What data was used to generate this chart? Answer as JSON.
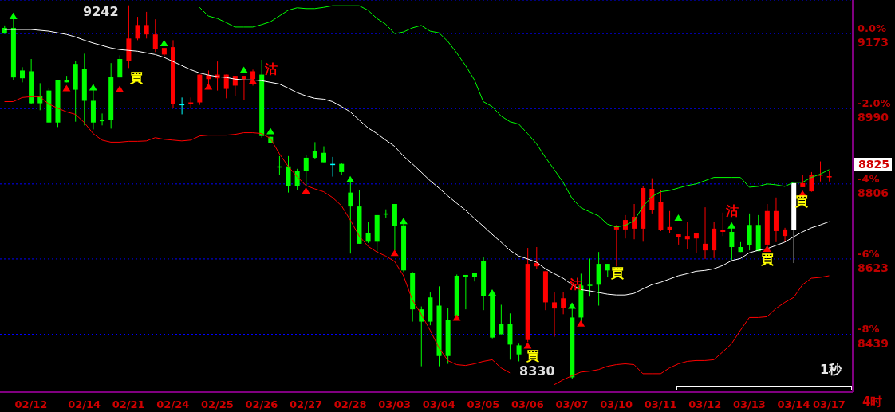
{
  "chart_data": {
    "type": "candlestick",
    "categories": [
      null,
      null,
      null,
      "02/12",
      null,
      null,
      null,
      null,
      null,
      "02/14",
      null,
      null,
      null,
      null,
      "02/21",
      null,
      null,
      null,
      null,
      "02/24",
      null,
      null,
      null,
      null,
      "02/25",
      null,
      null,
      null,
      null,
      "02/26",
      null,
      null,
      null,
      null,
      "02/27",
      null,
      null,
      null,
      null,
      "02/28",
      null,
      null,
      null,
      null,
      "03/03",
      null,
      null,
      null,
      null,
      "03/04",
      null,
      null,
      null,
      null,
      "03/05",
      null,
      null,
      null,
      null,
      "03/06",
      null,
      null,
      null,
      null,
      "03/07",
      null,
      null,
      null,
      null,
      "03/10",
      null,
      null,
      null,
      null,
      "03/11",
      null,
      null,
      null,
      null,
      "03/12",
      null,
      null,
      null,
      null,
      "03/13",
      null,
      null,
      null,
      null,
      "03/14",
      null,
      null,
      null,
      "03/17"
    ],
    "ohlc": [
      [
        9187,
        9193,
        9173,
        9173
      ],
      [
        9187,
        9224,
        9060,
        9066
      ],
      [
        9083,
        9091,
        9054,
        9064
      ],
      [
        9081,
        9111,
        9001,
        9003
      ],
      [
        9021,
        9052,
        8986,
        9003
      ],
      [
        9034,
        9040,
        8956,
        8956
      ],
      [
        9060,
        9060,
        8945,
        8956
      ],
      [
        9060,
        9070,
        9054,
        9054
      ],
      [
        9099,
        9107,
        8958,
        9036
      ],
      [
        9087,
        9124,
        8949,
        9009
      ],
      [
        9009,
        9050,
        8939,
        8956
      ],
      [
        8962,
        8978,
        8949,
        8962
      ],
      [
        9068,
        9101,
        8941,
        8962
      ],
      [
        9111,
        9120,
        9066,
        9066
      ],
      [
        9107,
        9242,
        9089,
        9161
      ],
      [
        9161,
        9214,
        9157,
        9194
      ],
      [
        9171,
        9226,
        9161,
        9194
      ],
      [
        9136,
        9208,
        9128,
        9171
      ],
      [
        9122,
        9138,
        9118,
        9138
      ],
      [
        9001,
        9157,
        8991,
        9140
      ],
      [
        9001,
        9017,
        8976,
        9001
      ],
      [
        9005,
        9017,
        8990,
        9005
      ],
      [
        9005,
        9073,
        8999,
        9073
      ],
      [
        9062,
        9083,
        9050,
        9072
      ],
      [
        9064,
        9105,
        9034,
        9073
      ],
      [
        9038,
        9073,
        9015,
        9073
      ],
      [
        9046,
        9070,
        9021,
        9070
      ],
      [
        9062,
        9070,
        9011,
        9070
      ],
      [
        9062,
        9085,
        9046,
        9081
      ],
      [
        9073,
        9109,
        8919,
        8923
      ],
      [
        8921,
        8921,
        8906,
        8906
      ],
      [
        8849,
        8874,
        8828,
        8849
      ],
      [
        8849,
        8874,
        8785,
        8800
      ],
      [
        8837,
        8843,
        8792,
        8800
      ],
      [
        8870,
        8876,
        8800,
        8837
      ],
      [
        8886,
        8908,
        8867,
        8870
      ],
      [
        8882,
        8898,
        8859,
        8859
      ],
      [
        8855,
        8872,
        8824,
        8855
      ],
      [
        8855,
        8857,
        8829,
        8835
      ],
      [
        8785,
        8812,
        8636,
        8751
      ],
      [
        8751,
        8792,
        8660,
        8660
      ],
      [
        8687,
        8714,
        8662,
        8665
      ],
      [
        8730,
        8730,
        8640,
        8665
      ],
      [
        8734,
        8744,
        8724,
        8734
      ],
      [
        8757,
        8757,
        8644,
        8703
      ],
      [
        8705,
        8722,
        8591,
        8595
      ],
      [
        8589,
        8591,
        8470,
        8500
      ],
      [
        8500,
        8507,
        8361,
        8470
      ],
      [
        8529,
        8541,
        8461,
        8470
      ],
      [
        8509,
        8556,
        8361,
        8386
      ],
      [
        8474,
        8503,
        8367,
        8386
      ],
      [
        8582,
        8585,
        8484,
        8484
      ],
      [
        8584,
        8584,
        8500,
        8580
      ],
      [
        8589,
        8589,
        8568,
        8580
      ],
      [
        8617,
        8628,
        8498,
        8533
      ],
      [
        8533,
        8546,
        8429,
        8431
      ],
      [
        8464,
        8511,
        8439,
        8439
      ],
      [
        8464,
        8490,
        8377,
        8414
      ],
      [
        8412,
        8416,
        8373,
        8390
      ],
      [
        8425,
        8650,
        8420,
        8611
      ],
      [
        8605,
        8652,
        8599,
        8613
      ],
      [
        8517,
        8593,
        8498,
        8593
      ],
      [
        8502,
        8541,
        8433,
        8517
      ],
      [
        8504,
        8543,
        8488,
        8527
      ],
      [
        8480,
        8515,
        8330,
        8334
      ],
      [
        8558,
        8587,
        8470,
        8480
      ],
      [
        8560,
        8624,
        8531,
        8560
      ],
      [
        8611,
        8640,
        8509,
        8560
      ],
      [
        8611,
        8611,
        8578,
        8595
      ],
      [
        8695,
        8706,
        8605,
        8703
      ],
      [
        8695,
        8730,
        8673,
        8718
      ],
      [
        8697,
        8757,
        8671,
        8726
      ],
      [
        8697,
        8800,
        8665,
        8796
      ],
      [
        8742,
        8820,
        8734,
        8794
      ],
      [
        8693,
        8792,
        8691,
        8761
      ],
      [
        8693,
        8740,
        8685,
        8701
      ],
      [
        8677,
        8683,
        8658,
        8683
      ],
      [
        8671,
        8714,
        8648,
        8679
      ],
      [
        8673,
        8685,
        8638,
        8685
      ],
      [
        8644,
        8749,
        8623,
        8660
      ],
      [
        8644,
        8714,
        8625,
        8697
      ],
      [
        8689,
        8736,
        8679,
        8693
      ],
      [
        8689,
        8705,
        8621,
        8652
      ],
      [
        8652,
        8664,
        8640,
        8640
      ],
      [
        8706,
        8734,
        8644,
        8656
      ],
      [
        8706,
        8730,
        8642,
        8642
      ],
      [
        8658,
        8757,
        8650,
        8740
      ],
      [
        8691,
        8773,
        8664,
        8740
      ],
      [
        8679,
        8699,
        8664,
        8695
      ],
      [
        8693,
        8808,
        8613,
        8808
      ],
      [
        8798,
        8828,
        8798,
        8808
      ],
      [
        8788,
        8835,
        8787,
        8828
      ],
      [
        8829,
        8861,
        8812,
        8829
      ],
      [
        8825,
        8839,
        8812,
        8825
      ]
    ],
    "colors": [
      "#00ff00",
      "#00ff00",
      "#00ff00",
      "#00ff00",
      "#00ff00",
      "#00ff00",
      "#00ff00",
      "#00ff00",
      "#00ff00",
      "#00ff00",
      "#00ff00",
      "#00ff00",
      "#00ff00",
      "#00ff00",
      "#ff0000",
      "#ff0000",
      "#ff0000",
      "#ff0000",
      "#ff0000",
      "#ff0000",
      "#00ffff",
      "#ff0000",
      "#ff0000",
      "#ff0000",
      "#ff0000",
      "#ff0000",
      "#ff0000",
      "#ff0000",
      "#ff0000",
      "#00ff00",
      "#00ff00",
      "#00ff00",
      "#00ff00",
      "#00ff00",
      "#00ff00",
      "#00ff00",
      "#00ff00",
      "#00ffff",
      "#00ff00",
      "#00ff00",
      "#00ff00",
      "#00ff00",
      "#00ff00",
      "#00ff00",
      "#00ff00",
      "#00ff00",
      "#00ff00",
      "#00ff00",
      "#00ff00",
      "#00ff00",
      "#00ff00",
      "#00ff00",
      "#00ff00",
      "#00ff00",
      "#00ff00",
      "#00ff00",
      "#00ff00",
      "#00ff00",
      "#00ff00",
      "#ff0000",
      "#ff0000",
      "#ff0000",
      "#ff0000",
      "#ff0000",
      "#00ff00",
      "#00ff00",
      "#00ff00",
      "#00ff00",
      "#00ff00",
      "#ff0000",
      "#ff0000",
      "#ff0000",
      "#ff0000",
      "#ff0000",
      "#ff0000",
      "#ff0000",
      "#ff0000",
      "#ff0000",
      "#ff0000",
      "#ff0000",
      "#ff0000",
      "#ff0000",
      "#00ff00",
      "#00ff00",
      "#00ff00",
      "#00ff00",
      "#ff0000",
      "#ff0000",
      "#ff0000",
      "#ffffff",
      "#ff0000",
      "#ff0000",
      "#ff0000",
      "#ff0000"
    ],
    "series": [
      {
        "type": "line",
        "color": "#ffffff",
        "values": [
          9183,
          9183,
          9183,
          9183,
          9181,
          9179,
          9175,
          9171,
          9165,
          9157,
          9150,
          9144,
          9138,
          9134,
          9132,
          9130,
          9126,
          9122,
          9115,
          9105,
          9095,
          9085,
          9077,
          9072,
          9068,
          9066,
          9062,
          9060,
          9060,
          9058,
          9054,
          9050,
          9040,
          9029,
          9021,
          9015,
          9013,
          9007,
          8995,
          8982,
          8962,
          8943,
          8929,
          8913,
          8898,
          8874,
          8855,
          8835,
          8814,
          8796,
          8777,
          8759,
          8742,
          8722,
          8703,
          8683,
          8664,
          8644,
          8630,
          8623,
          8615,
          8599,
          8587,
          8576,
          8560,
          8548,
          8545,
          8541,
          8537,
          8535,
          8535,
          8539,
          8550,
          8560,
          8566,
          8574,
          8582,
          8587,
          8593,
          8595,
          8599,
          8607,
          8619,
          8624,
          8638,
          8644,
          8648,
          8656,
          8664,
          8677,
          8689,
          8699,
          8706,
          8714
        ]
      },
      {
        "type": "line",
        "color": "#00ff00",
        "values": [
          null,
          null,
          null,
          null,
          null,
          null,
          null,
          null,
          null,
          null,
          null,
          null,
          null,
          null,
          null,
          null,
          null,
          null,
          null,
          null,
          null,
          null,
          9237,
          9216,
          9210,
          9200,
          9189,
          9189,
          9189,
          9195,
          9202,
          9216,
          9230,
          9236,
          9234,
          9234,
          9237,
          9241,
          9241,
          9241,
          9241,
          9230,
          9210,
          9196,
          9173,
          9177,
          9187,
          9193,
          9179,
          9175,
          9154,
          9126,
          9095,
          9060,
          9007,
          8995,
          8972,
          8958,
          8952,
          8929,
          8904,
          8871,
          8841,
          8810,
          8771,
          8748,
          8738,
          8728,
          8708,
          8701,
          8705,
          8716,
          8751,
          8775,
          8787,
          8790,
          8796,
          8802,
          8806,
          8814,
          8822,
          8822,
          8822,
          8822,
          8798,
          8800,
          8806,
          8804,
          8800,
          8810,
          8810,
          8822,
          8830,
          8841
        ]
      },
      {
        "type": "line",
        "color": "#ff0000",
        "values": [
          9007,
          9007,
          9017,
          9019,
          9019,
          9001,
          8991,
          8982,
          8976,
          8956,
          8929,
          8913,
          8908,
          8908,
          8910,
          8910,
          8911,
          8919,
          8915,
          8913,
          8911,
          8913,
          8923,
          8925,
          8925,
          8925,
          8927,
          8931,
          8931,
          8929,
          8917,
          8880,
          8849,
          8824,
          8802,
          8794,
          8787,
          8773,
          8753,
          8718,
          8679,
          8654,
          8640,
          8630,
          8617,
          8582,
          8523,
          8488,
          8449,
          8406,
          8375,
          8365,
          8363,
          8367,
          8373,
          8377,
          8357,
          8345,
          null,
          null,
          null,
          null,
          8316,
          8328,
          8338,
          8347,
          8349,
          8353,
          8361,
          8365,
          8367,
          8365,
          8343,
          8343,
          8343,
          8357,
          8367,
          8373,
          8375,
          8375,
          8377,
          8396,
          8416,
          8449,
          8480,
          8480,
          8482,
          8502,
          8517,
          8529,
          8560,
          8576,
          8578,
          8582
        ]
      },
      {
        "type": "scatter",
        "color": "#ff0000",
        "marker": "triangle",
        "values": [
          null,
          null,
          null,
          null,
          null,
          null,
          null,
          9038,
          null,
          null,
          null,
          null,
          null,
          9036,
          null,
          null,
          null,
          null,
          null,
          null,
          null,
          null,
          null,
          9042,
          null,
          null,
          null,
          null,
          9056,
          null,
          null,
          null,
          null,
          null,
          8788,
          null,
          null,
          null,
          null,
          null,
          null,
          null,
          null,
          null,
          8636,
          null,
          null,
          null,
          null,
          null,
          null,
          8478,
          null,
          null,
          null,
          null,
          null,
          null,
          null,
          8410,
          null,
          null,
          null,
          null,
          null,
          8464,
          null,
          null,
          null,
          null,
          null,
          null,
          null,
          null,
          null,
          null,
          null,
          null,
          null,
          null,
          null,
          null,
          null,
          null,
          null,
          null,
          8646,
          null,
          null,
          null,
          8781,
          null,
          null,
          null
        ]
      },
      {
        "type": "scatter",
        "color": "#00ff00",
        "marker": "triangle",
        "values": [
          null,
          9214,
          null,
          null,
          null,
          null,
          null,
          null,
          null,
          null,
          9040,
          null,
          null,
          null,
          null,
          null,
          null,
          null,
          9148,
          null,
          null,
          null,
          null,
          null,
          null,
          null,
          null,
          9083,
          null,
          null,
          8933,
          null,
          null,
          null,
          null,
          null,
          null,
          null,
          null,
          8816,
          null,
          null,
          null,
          null,
          null,
          8714,
          null,
          null,
          null,
          null,
          null,
          null,
          null,
          null,
          null,
          8539,
          null,
          null,
          null,
          null,
          null,
          null,
          null,
          null,
          8507,
          null,
          null,
          null,
          null,
          null,
          null,
          null,
          null,
          null,
          null,
          null,
          8722,
          null,
          null,
          null,
          null,
          null,
          8703,
          null,
          null,
          null,
          null,
          null,
          null,
          null,
          null,
          null,
          null,
          null
        ]
      }
    ],
    "ylim": [
      8298,
      9255
    ],
    "yticks": [
      8439,
      8623,
      8806,
      8990,
      9173
    ],
    "y2lim": [
      -9.54,
      0.894
    ],
    "y2ticks": [
      {
        "value": -8,
        "label": "-8%"
      },
      {
        "value": -6,
        "label": "-6%"
      },
      {
        "value": -4,
        "label": "-4%"
      },
      {
        "value": -2,
        "label": "-2.0%"
      },
      {
        "value": 0,
        "label": "0.0%"
      }
    ],
    "grid": "y",
    "xlabel": "4时",
    "annotations": [
      "9242",
      "8330",
      "8825",
      "1秒",
      "買",
      "買",
      "買",
      "買",
      "買",
      "沽",
      "沽",
      "沽"
    ]
  }
}
